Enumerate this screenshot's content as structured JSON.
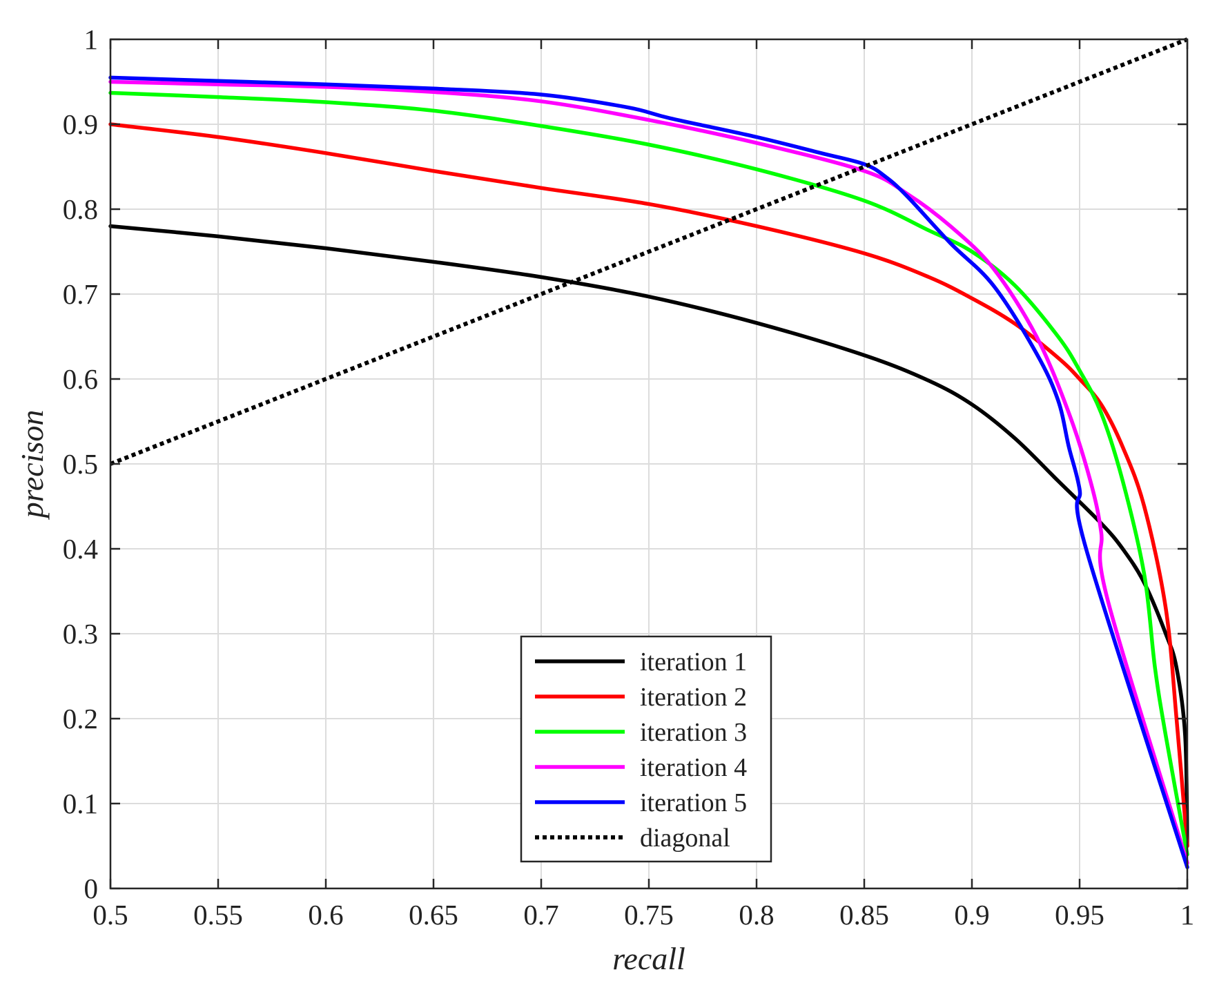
{
  "chart_data": {
    "type": "line",
    "xlabel": "recall",
    "ylabel": "precison",
    "xlim": [
      0.5,
      1
    ],
    "ylim": [
      0,
      1
    ],
    "grid": true,
    "legend_position": "bottom-center",
    "xticks": [
      "0.5",
      "0.55",
      "0.6",
      "0.65",
      "0.7",
      "0.75",
      "0.8",
      "0.85",
      "0.9",
      "0.95",
      "1"
    ],
    "yticks": [
      "0",
      "0.1",
      "0.2",
      "0.3",
      "0.4",
      "0.5",
      "0.6",
      "0.7",
      "0.8",
      "0.9",
      "1"
    ],
    "series": [
      {
        "name": "iteration 1",
        "color": "#000000",
        "style": "solid",
        "points": [
          [
            0.5,
            0.78
          ],
          [
            0.55,
            0.768
          ],
          [
            0.6,
            0.754
          ],
          [
            0.65,
            0.738
          ],
          [
            0.7,
            0.72
          ],
          [
            0.75,
            0.697
          ],
          [
            0.8,
            0.666
          ],
          [
            0.85,
            0.628
          ],
          [
            0.88,
            0.598
          ],
          [
            0.9,
            0.57
          ],
          [
            0.92,
            0.53
          ],
          [
            0.94,
            0.48
          ],
          [
            0.96,
            0.43
          ],
          [
            0.97,
            0.4
          ],
          [
            0.98,
            0.36
          ],
          [
            0.99,
            0.3
          ],
          [
            0.995,
            0.26
          ],
          [
            0.999,
            0.18
          ],
          [
            1.0,
            0.05
          ]
        ]
      },
      {
        "name": "iteration 2",
        "color": "#ff0000",
        "style": "solid",
        "points": [
          [
            0.5,
            0.9
          ],
          [
            0.55,
            0.885
          ],
          [
            0.6,
            0.866
          ],
          [
            0.65,
            0.845
          ],
          [
            0.7,
            0.825
          ],
          [
            0.75,
            0.806
          ],
          [
            0.8,
            0.78
          ],
          [
            0.85,
            0.748
          ],
          [
            0.88,
            0.72
          ],
          [
            0.9,
            0.695
          ],
          [
            0.92,
            0.665
          ],
          [
            0.94,
            0.625
          ],
          [
            0.95,
            0.6
          ],
          [
            0.96,
            0.57
          ],
          [
            0.97,
            0.52
          ],
          [
            0.98,
            0.45
          ],
          [
            0.99,
            0.33
          ],
          [
            0.995,
            0.2
          ],
          [
            1.0,
            0.05
          ]
        ]
      },
      {
        "name": "iteration 3",
        "color": "#00ff00",
        "style": "solid",
        "points": [
          [
            0.5,
            0.937
          ],
          [
            0.55,
            0.932
          ],
          [
            0.6,
            0.926
          ],
          [
            0.65,
            0.916
          ],
          [
            0.7,
            0.898
          ],
          [
            0.75,
            0.876
          ],
          [
            0.8,
            0.847
          ],
          [
            0.85,
            0.81
          ],
          [
            0.88,
            0.775
          ],
          [
            0.9,
            0.75
          ],
          [
            0.92,
            0.71
          ],
          [
            0.94,
            0.65
          ],
          [
            0.95,
            0.61
          ],
          [
            0.96,
            0.56
          ],
          [
            0.97,
            0.48
          ],
          [
            0.98,
            0.37
          ],
          [
            0.985,
            0.26
          ],
          [
            0.99,
            0.18
          ],
          [
            1.0,
            0.04
          ]
        ]
      },
      {
        "name": "iteration 4",
        "color": "#ff00ff",
        "style": "solid",
        "points": [
          [
            0.5,
            0.95
          ],
          [
            0.55,
            0.947
          ],
          [
            0.6,
            0.944
          ],
          [
            0.65,
            0.938
          ],
          [
            0.7,
            0.927
          ],
          [
            0.75,
            0.905
          ],
          [
            0.8,
            0.878
          ],
          [
            0.85,
            0.845
          ],
          [
            0.87,
            0.818
          ],
          [
            0.89,
            0.78
          ],
          [
            0.91,
            0.73
          ],
          [
            0.93,
            0.65
          ],
          [
            0.945,
            0.56
          ],
          [
            0.955,
            0.48
          ],
          [
            0.96,
            0.42
          ],
          [
            0.963,
            0.34
          ],
          [
            1.0,
            0.03
          ]
        ]
      },
      {
        "name": "iteration 5",
        "color": "#0000ff",
        "style": "solid",
        "points": [
          [
            0.5,
            0.955
          ],
          [
            0.55,
            0.951
          ],
          [
            0.6,
            0.947
          ],
          [
            0.65,
            0.942
          ],
          [
            0.7,
            0.935
          ],
          [
            0.74,
            0.92
          ],
          [
            0.76,
            0.907
          ],
          [
            0.8,
            0.885
          ],
          [
            0.83,
            0.866
          ],
          [
            0.85,
            0.853
          ],
          [
            0.86,
            0.838
          ],
          [
            0.87,
            0.815
          ],
          [
            0.89,
            0.76
          ],
          [
            0.91,
            0.71
          ],
          [
            0.93,
            0.63
          ],
          [
            0.94,
            0.575
          ],
          [
            0.945,
            0.52
          ],
          [
            0.95,
            0.47
          ],
          [
            0.953,
            0.4
          ],
          [
            1.0,
            0.025
          ]
        ]
      },
      {
        "name": "diagonal",
        "color": "#000000",
        "style": "dotted",
        "points": [
          [
            0.5,
            0.5
          ],
          [
            1.0,
            1.0
          ]
        ]
      }
    ]
  }
}
